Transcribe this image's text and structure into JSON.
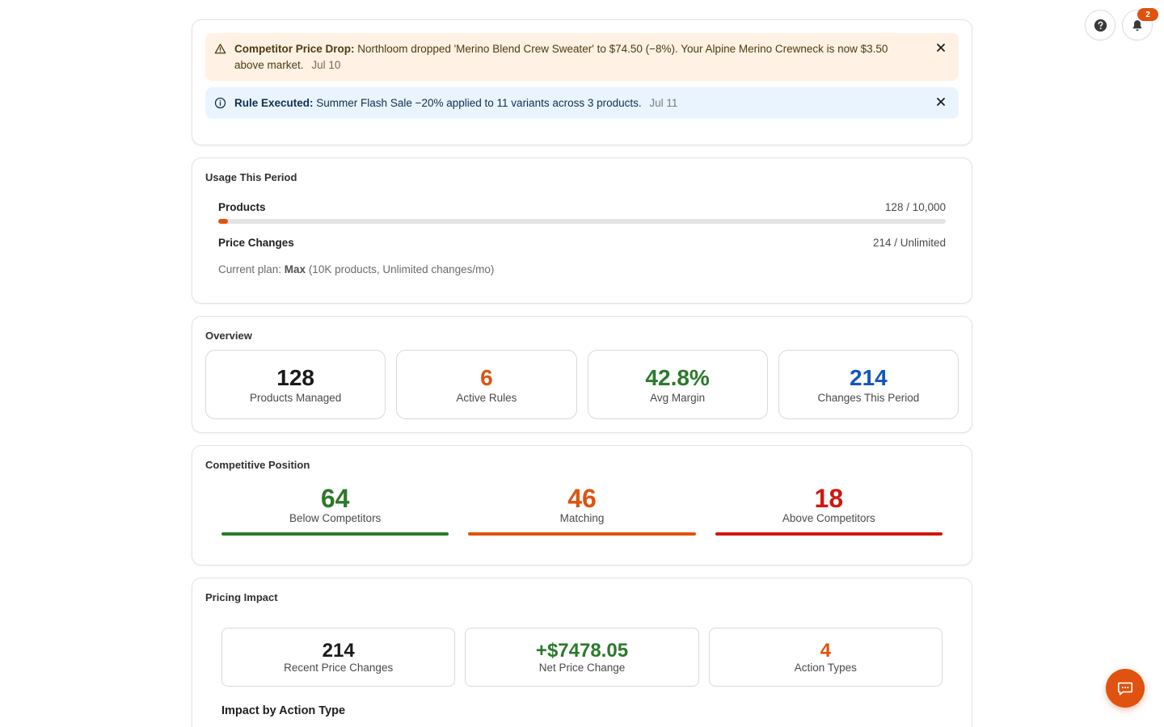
{
  "banners": [
    {
      "type": "warning",
      "title": "Competitor Price Drop:",
      "message": "Northloom dropped 'Merino Blend Crew Sweater' to $74.50 (−8%). Your Alpine Merino Crewneck is now $3.50 above market.",
      "date": "Jul 10",
      "icon": "warning-triangle-icon"
    },
    {
      "type": "info",
      "title": "Rule Executed:",
      "message": "Summer Flash Sale −20% applied to 11 variants across 3 products.",
      "date": "Jul 11",
      "icon": "info-circle-icon"
    }
  ],
  "usage": {
    "title": "Usage This Period",
    "products": {
      "label": "Products",
      "value": "128 / 10,000",
      "fraction": 0.0128
    },
    "price_changes": {
      "label": "Price Changes",
      "value": "214 / Unlimited"
    },
    "plan_prefix": "Current plan: ",
    "plan_name": "Max",
    "plan_details": " (10K products, Unlimited changes/mo)"
  },
  "overview": {
    "title": "Overview",
    "stats": [
      {
        "value": "128",
        "label": "Products Managed",
        "color": "#1a1a1a"
      },
      {
        "value": "6",
        "label": "Active Rules",
        "color": "#e0520f"
      },
      {
        "value": "42.8%",
        "label": "Avg Margin",
        "color": "#2b7a2b"
      },
      {
        "value": "214",
        "label": "Changes This Period",
        "color": "#1455c0"
      }
    ]
  },
  "competitive": {
    "title": "Competitive Position",
    "items": [
      {
        "value": "64",
        "label": "Below Competitors",
        "color": "#2b7a2b"
      },
      {
        "value": "46",
        "label": "Matching",
        "color": "#e0520f"
      },
      {
        "value": "18",
        "label": "Above Competitors",
        "color": "#d0170f"
      }
    ]
  },
  "impact": {
    "title": "Pricing Impact",
    "items": [
      {
        "value": "214",
        "label": "Recent Price Changes",
        "color": "#1a1a1a"
      },
      {
        "value": "+$7478.05",
        "label": "Net Price Change",
        "color": "#2b7a2b"
      },
      {
        "value": "4",
        "label": "Action Types",
        "color": "#e0520f"
      }
    ],
    "subheading": "Impact by Action Type"
  },
  "header": {
    "help_icon": "help-circle-icon",
    "notifications_icon": "bell-icon",
    "notification_count": "2"
  },
  "chat": {
    "icon": "chat-bubble-icon"
  },
  "colors": {
    "accent": "#e0520f"
  }
}
